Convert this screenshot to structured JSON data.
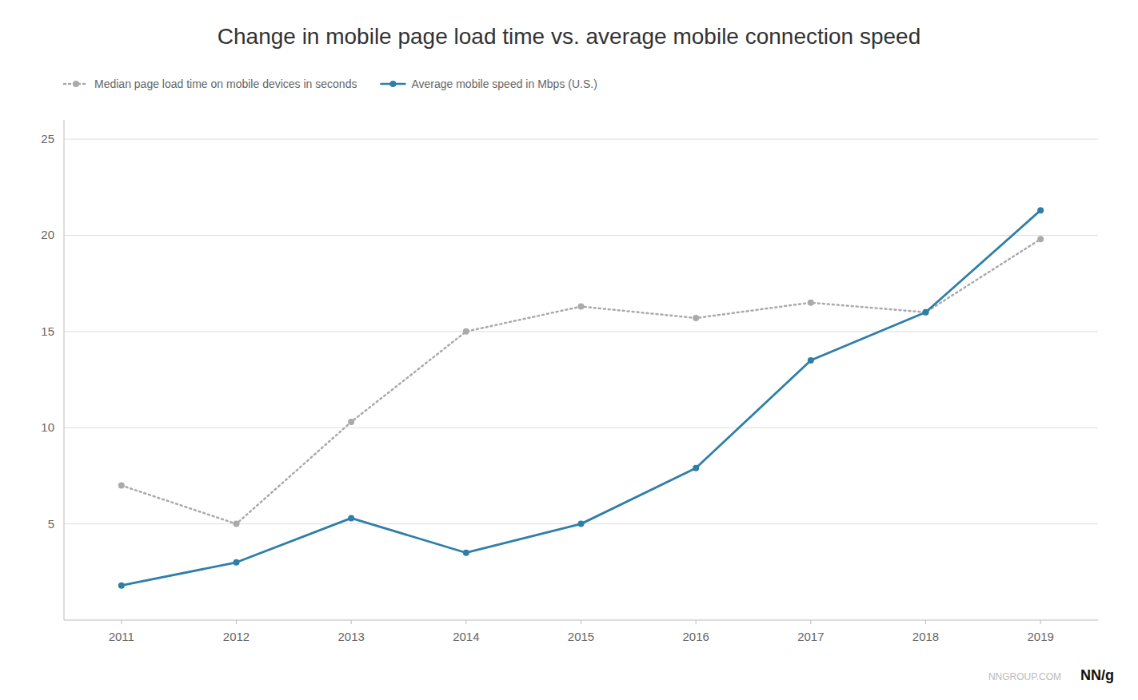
{
  "chart_data": {
    "type": "line",
    "title": "Change in mobile page load time vs. average mobile connection speed",
    "x": [
      2011,
      2012,
      2013,
      2014,
      2015,
      2016,
      2017,
      2018,
      2019
    ],
    "xlim": [
      2010.5,
      2019.5
    ],
    "xticks": [
      2011,
      2012,
      2013,
      2014,
      2015,
      2016,
      2017,
      2018,
      2019
    ],
    "ylim": [
      0,
      26
    ],
    "yticks": [
      5,
      10,
      15,
      20,
      25
    ],
    "grid": true,
    "legend": "top",
    "series": [
      {
        "name": "Median page load time on mobile devices in seconds",
        "color": "#aaaaaa",
        "line_style": "dotted",
        "marker": "circle",
        "values": [
          7.0,
          5.0,
          10.3,
          15.0,
          16.3,
          15.7,
          16.5,
          16.0,
          19.8
        ]
      },
      {
        "name": "Average mobile speed in Mbps (U.S.)",
        "color": "#2e7fa8",
        "line_style": "solid",
        "marker": "circle",
        "values": [
          1.8,
          3.0,
          5.3,
          3.5,
          5.0,
          7.9,
          13.5,
          16.0,
          21.3
        ]
      }
    ],
    "annotations": [
      "NNGROUP.COM",
      "NN/g"
    ]
  }
}
